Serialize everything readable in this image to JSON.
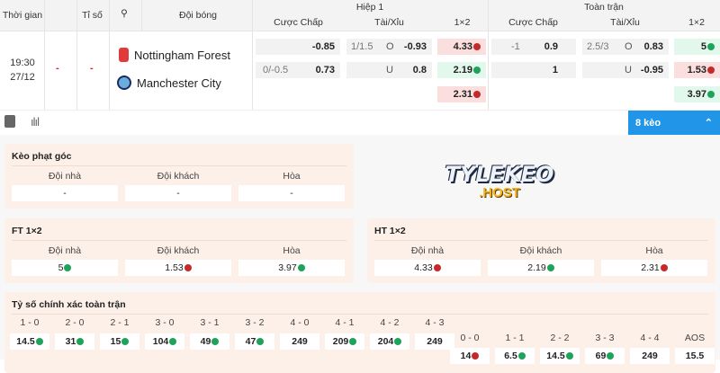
{
  "header": {
    "time": "Thời gian",
    "score": "Tỉ số",
    "team": "Đội bóng",
    "half1": "Hiệp 1",
    "full": "Toàn trận",
    "hcap": "Cược Chấp",
    "ou": "Tài/Xỉu",
    "x12": "1×2"
  },
  "match": {
    "time": "19:30",
    "date": "27/12",
    "score_a": "-",
    "score_b": "-",
    "home": "Nottingham Forest",
    "away": "Manchester City",
    "h1": {
      "hcap": [
        {
          "line": "",
          "odd": "-0.85"
        },
        {
          "line": "0/-0.5",
          "odd": "0.73"
        }
      ],
      "ou": [
        {
          "line": "1/1.5",
          "side": "O",
          "odd": "-0.93"
        },
        {
          "line": "",
          "side": "U",
          "odd": "0.8"
        }
      ],
      "x12": [
        {
          "v": "4.33",
          "dir": "down"
        },
        {
          "v": "2.19",
          "dir": "up"
        },
        {
          "v": "2.31",
          "dir": "down"
        }
      ]
    },
    "ft": {
      "hcap": [
        {
          "line": "-1",
          "odd": "0.9"
        },
        {
          "line": "",
          "odd": "1"
        }
      ],
      "ou": [
        {
          "line": "2.5/3",
          "side": "O",
          "odd": "0.83"
        },
        {
          "line": "",
          "side": "U",
          "odd": "-0.95"
        }
      ],
      "x12": [
        {
          "v": "5",
          "dir": "up"
        },
        {
          "v": "1.53",
          "dir": "down"
        },
        {
          "v": "3.97",
          "dir": "up"
        }
      ]
    }
  },
  "toolbar": {
    "more_label": "8 kèo"
  },
  "logo": {
    "text": "TYLEKEO",
    "sub": ".HOST"
  },
  "corner": {
    "title": "Kèo phạt góc",
    "labels": [
      "Đội nhà",
      "Đội khách",
      "Hòa"
    ],
    "values": [
      "-",
      "-",
      "-"
    ]
  },
  "ft12": {
    "title": "FT 1×2",
    "labels": [
      "Đội nhà",
      "Đội khách",
      "Hòa"
    ],
    "values": [
      {
        "v": "5",
        "dir": "up"
      },
      {
        "v": "1.53",
        "dir": "down"
      },
      {
        "v": "3.97",
        "dir": "up"
      }
    ]
  },
  "ht12": {
    "title": "HT 1×2",
    "labels": [
      "Đội nhà",
      "Đội khách",
      "Hòa"
    ],
    "values": [
      {
        "v": "4.33",
        "dir": "down"
      },
      {
        "v": "2.19",
        "dir": "up"
      },
      {
        "v": "2.31",
        "dir": "down"
      }
    ]
  },
  "correct": {
    "title": "Tỷ số chính xác toàn trận",
    "home": [
      {
        "s": "1 - 0",
        "v": "14.5",
        "dir": "up"
      },
      {
        "s": "2 - 0",
        "v": "31",
        "dir": "up"
      },
      {
        "s": "2 - 1",
        "v": "15",
        "dir": "up"
      },
      {
        "s": "3 - 0",
        "v": "104",
        "dir": "up"
      },
      {
        "s": "3 - 1",
        "v": "49",
        "dir": "up"
      },
      {
        "s": "3 - 2",
        "v": "47",
        "dir": "up"
      },
      {
        "s": "4 - 0",
        "v": "249",
        "dir": ""
      },
      {
        "s": "4 - 1",
        "v": "209",
        "dir": "up"
      },
      {
        "s": "4 - 2",
        "v": "204",
        "dir": "up"
      },
      {
        "s": "4 - 3",
        "v": "249",
        "dir": ""
      }
    ],
    "draw": [
      {
        "s": "0 - 0",
        "v": "14",
        "dir": "down"
      },
      {
        "s": "1 - 1",
        "v": "6.5",
        "dir": "up"
      },
      {
        "s": "2 - 2",
        "v": "14.5",
        "dir": "up"
      },
      {
        "s": "3 - 3",
        "v": "69",
        "dir": "up"
      },
      {
        "s": "4 - 4",
        "v": "249",
        "dir": ""
      },
      {
        "s": "AOS",
        "v": "15.5",
        "dir": ""
      }
    ]
  },
  "colors": {
    "up": "#1fa25a",
    "down": "#c42a2a",
    "accent": "#2196e8"
  }
}
